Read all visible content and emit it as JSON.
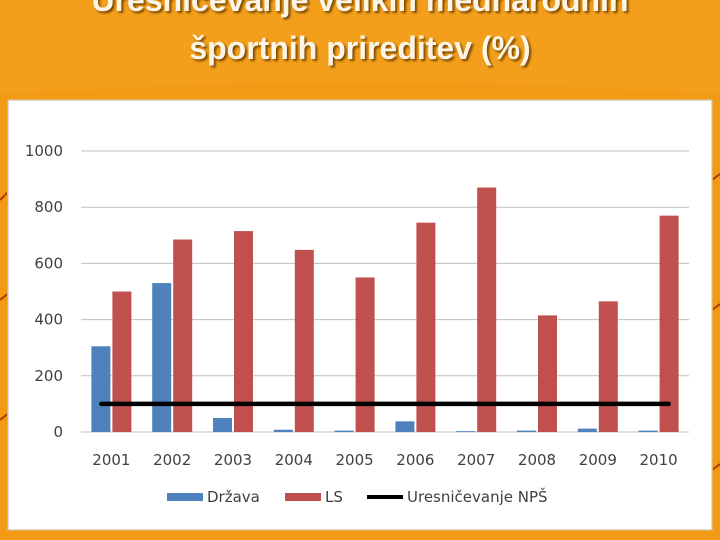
{
  "slide": {
    "title_line_1": "Uresničevanje velikih mednarodnih",
    "title_line_2": "športnih prireditev (%)",
    "background_color": "#f29a14"
  },
  "chart_data": {
    "type": "bar",
    "title": "",
    "xlabel": "",
    "ylabel": "",
    "categories": [
      "2001",
      "2002",
      "2003",
      "2004",
      "2005",
      "2006",
      "2007",
      "2008",
      "2009",
      "2010"
    ],
    "ylim": [
      0,
      1000
    ],
    "yticks": [
      0,
      200,
      400,
      600,
      800,
      1000
    ],
    "grid": true,
    "legend_position": "bottom",
    "series": [
      {
        "name": "Država",
        "type": "bar",
        "color": "#4f81bd",
        "values": [
          305,
          530,
          50,
          8,
          5,
          38,
          3,
          5,
          12,
          5
        ]
      },
      {
        "name": "LS",
        "type": "bar",
        "color": "#c0504d",
        "values": [
          500,
          685,
          715,
          648,
          550,
          745,
          870,
          415,
          465,
          770
        ]
      },
      {
        "name": "Uresničevanje NPŠ",
        "type": "line",
        "color": "#000000",
        "values": [
          100,
          100,
          100,
          100,
          100,
          100,
          100,
          100,
          100,
          100
        ]
      }
    ]
  }
}
